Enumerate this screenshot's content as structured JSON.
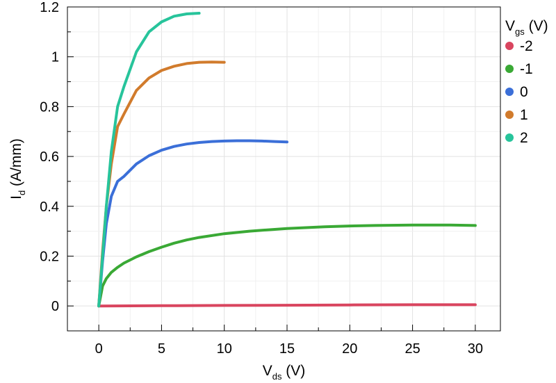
{
  "chart_data": {
    "type": "line",
    "title": "",
    "xlabel": {
      "main": "V",
      "sub": "ds",
      "unit": " (V)"
    },
    "ylabel": {
      "main": "I",
      "sub": "d",
      "unit": " (A/mm)"
    },
    "xlim": [
      -2.5,
      32
    ],
    "ylim": [
      -0.1,
      1.2
    ],
    "xticks": [
      0,
      5,
      10,
      15,
      20,
      25,
      30
    ],
    "yticks": [
      0,
      0.2,
      0.4,
      0.6,
      0.8,
      1,
      1.2
    ],
    "xtick_labels": [
      "0",
      "5",
      "10",
      "15",
      "20",
      "25",
      "30"
    ],
    "ytick_labels": [
      "0",
      "0.2",
      "0.4",
      "0.6",
      "0.8",
      "1",
      "1.2"
    ],
    "grid": true,
    "legend": {
      "placement": "right",
      "title": {
        "main": "V",
        "sub": "gs",
        "unit": " (V)"
      }
    },
    "series": [
      {
        "name": "-2",
        "color": "#d9455f",
        "x": [
          0,
          5,
          10,
          15,
          20,
          25,
          30
        ],
        "y": [
          0,
          0.001,
          0.002,
          0.003,
          0.004,
          0.005,
          0.005
        ]
      },
      {
        "name": "-1",
        "color": "#3aa935",
        "x": [
          0,
          0.3,
          0.6,
          1,
          1.5,
          2,
          3,
          4,
          5,
          6,
          7,
          8,
          10,
          12,
          15,
          18,
          20,
          22,
          25,
          28,
          30
        ],
        "y": [
          0,
          0.08,
          0.11,
          0.135,
          0.155,
          0.172,
          0.197,
          0.218,
          0.236,
          0.252,
          0.265,
          0.275,
          0.29,
          0.3,
          0.311,
          0.318,
          0.321,
          0.323,
          0.325,
          0.325,
          0.323
        ]
      },
      {
        "name": "0",
        "color": "#3b6fd8",
        "x": [
          0,
          0.3,
          0.6,
          1,
          1.5,
          2,
          3,
          4,
          5,
          6,
          7,
          8,
          9,
          10,
          11,
          12,
          13,
          14,
          15
        ],
        "y": [
          0,
          0.18,
          0.33,
          0.44,
          0.5,
          0.52,
          0.57,
          0.603,
          0.625,
          0.64,
          0.65,
          0.656,
          0.66,
          0.662,
          0.663,
          0.663,
          0.662,
          0.66,
          0.658
        ]
      },
      {
        "name": "1",
        "color": "#d17b2c",
        "x": [
          0,
          0.3,
          0.6,
          1,
          1.5,
          2,
          3,
          4,
          5,
          6,
          7,
          8,
          9,
          10
        ],
        "y": [
          0,
          0.22,
          0.4,
          0.57,
          0.72,
          0.77,
          0.865,
          0.915,
          0.945,
          0.962,
          0.973,
          0.978,
          0.979,
          0.978
        ]
      },
      {
        "name": "2",
        "color": "#27c49b",
        "x": [
          0,
          0.3,
          0.6,
          1,
          1.5,
          2,
          3,
          4,
          5,
          6,
          7,
          8
        ],
        "y": [
          0,
          0.2,
          0.4,
          0.62,
          0.8,
          0.88,
          1.02,
          1.1,
          1.14,
          1.163,
          1.172,
          1.175
        ]
      }
    ]
  }
}
